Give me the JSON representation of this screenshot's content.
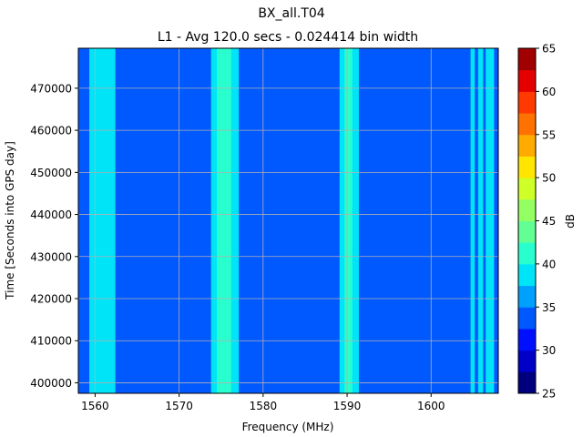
{
  "chart_data": {
    "type": "heatmap",
    "title": "BX_all.T04",
    "subtitle": "L1 - Avg 120.0 secs - 0.024414 bin width",
    "xlabel": "Frequency (MHz)",
    "ylabel": "Time [Seconds into GPS day]",
    "xlim": [
      1558,
      1608
    ],
    "ylim": [
      397500,
      479500
    ],
    "xticks": [
      1560,
      1570,
      1580,
      1590,
      1600
    ],
    "xtick_labels": [
      "1560",
      "1570",
      "1580",
      "1590",
      "1600"
    ],
    "yticks": [
      400000,
      410000,
      420000,
      430000,
      440000,
      450000,
      460000,
      470000
    ],
    "ytick_labels": [
      "400000",
      "410000",
      "420000",
      "430000",
      "440000",
      "450000",
      "460000",
      "470000"
    ],
    "grid": true,
    "background_level_db": 33.5,
    "bands": [
      {
        "from_mhz": 1559.3,
        "to_mhz": 1562.4,
        "level_db": 37.5
      },
      {
        "from_mhz": 1573.8,
        "to_mhz": 1577.1,
        "level_db": 37.5
      },
      {
        "from_mhz": 1574.5,
        "to_mhz": 1576.2,
        "level_db": 40.0
      },
      {
        "from_mhz": 1589.1,
        "to_mhz": 1591.4,
        "level_db": 37.5
      },
      {
        "from_mhz": 1589.7,
        "to_mhz": 1590.6,
        "level_db": 40.0
      },
      {
        "from_mhz": 1604.7,
        "to_mhz": 1605.2,
        "level_db": 37.5
      },
      {
        "from_mhz": 1605.6,
        "to_mhz": 1606.2,
        "level_db": 37.5
      },
      {
        "from_mhz": 1606.5,
        "to_mhz": 1607.5,
        "level_db": 37.5
      }
    ],
    "colorbar": {
      "label": "dB",
      "min": 25,
      "max": 65,
      "ticks": [
        25,
        30,
        35,
        40,
        45,
        50,
        55,
        60,
        65
      ],
      "tick_labels": [
        "25",
        "30",
        "35",
        "40",
        "45",
        "50",
        "55",
        "60",
        "65"
      ],
      "levels": [
        {
          "from": 25.0,
          "to": 27.5,
          "color": "#00007f"
        },
        {
          "from": 27.5,
          "to": 30.0,
          "color": "#0000c8"
        },
        {
          "from": 30.0,
          "to": 32.5,
          "color": "#0010ff"
        },
        {
          "from": 32.5,
          "to": 35.0,
          "color": "#0058ff"
        },
        {
          "from": 35.0,
          "to": 37.5,
          "color": "#00a0ff"
        },
        {
          "from": 37.5,
          "to": 40.0,
          "color": "#00e4f8"
        },
        {
          "from": 40.0,
          "to": 42.5,
          "color": "#29ffce"
        },
        {
          "from": 42.5,
          "to": 45.0,
          "color": "#62ff94"
        },
        {
          "from": 45.0,
          "to": 47.5,
          "color": "#94ff62"
        },
        {
          "from": 47.5,
          "to": 50.0,
          "color": "#ceff29"
        },
        {
          "from": 50.0,
          "to": 52.5,
          "color": "#ffe500"
        },
        {
          "from": 52.5,
          "to": 55.0,
          "color": "#ffab00"
        },
        {
          "from": 55.0,
          "to": 57.5,
          "color": "#ff7100"
        },
        {
          "from": 57.5,
          "to": 60.0,
          "color": "#ff3900"
        },
        {
          "from": 60.0,
          "to": 62.5,
          "color": "#e50000"
        },
        {
          "from": 62.5,
          "to": 65.0,
          "color": "#a10000"
        }
      ]
    }
  }
}
